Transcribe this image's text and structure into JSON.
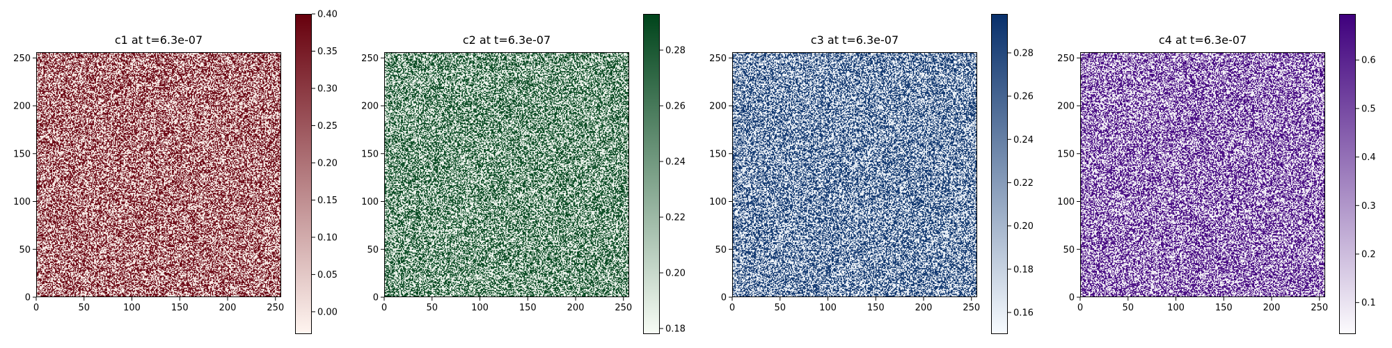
{
  "chart_data": [
    {
      "type": "heatmap",
      "title": "c1 at t=6.3e-07",
      "xlim": [
        0,
        256
      ],
      "ylim": [
        0,
        256
      ],
      "x_ticks": [
        "0",
        "50",
        "100",
        "150",
        "200",
        "250"
      ],
      "y_ticks": [
        "0",
        "50",
        "100",
        "150",
        "200",
        "250"
      ],
      "grid_size": [
        256,
        256
      ],
      "colormap": "Reds",
      "colormap_low": "#fff5f0",
      "colormap_high": "#67000d",
      "colorbar_range": [
        -0.03,
        0.4
      ],
      "colorbar_ticks": [
        "0.00",
        "0.05",
        "0.10",
        "0.15",
        "0.20",
        "0.25",
        "0.30",
        "0.35",
        "0.40"
      ]
    },
    {
      "type": "heatmap",
      "title": "c2 at t=6.3e-07",
      "xlim": [
        0,
        256
      ],
      "ylim": [
        0,
        256
      ],
      "x_ticks": [
        "0",
        "50",
        "100",
        "150",
        "200",
        "250"
      ],
      "y_ticks": [
        "0",
        "50",
        "100",
        "150",
        "200",
        "250"
      ],
      "grid_size": [
        256,
        256
      ],
      "colormap": "Greens",
      "colormap_low": "#f7fcf5",
      "colormap_high": "#00441b",
      "colorbar_range": [
        0.178,
        0.293
      ],
      "colorbar_ticks": [
        "0.18",
        "0.20",
        "0.22",
        "0.24",
        "0.26",
        "0.28"
      ]
    },
    {
      "type": "heatmap",
      "title": "c3 at t=6.3e-07",
      "xlim": [
        0,
        256
      ],
      "ylim": [
        0,
        256
      ],
      "x_ticks": [
        "0",
        "50",
        "100",
        "150",
        "200",
        "250"
      ],
      "y_ticks": [
        "0",
        "50",
        "100",
        "150",
        "200",
        "250"
      ],
      "grid_size": [
        256,
        256
      ],
      "colormap": "Blues",
      "colormap_low": "#f7fbff",
      "colormap_high": "#08306b",
      "colorbar_range": [
        0.15,
        0.298
      ],
      "colorbar_ticks": [
        "0.16",
        "0.18",
        "0.20",
        "0.22",
        "0.24",
        "0.26",
        "0.28"
      ]
    },
    {
      "type": "heatmap",
      "title": "c4 at t=6.3e-07",
      "xlim": [
        0,
        256
      ],
      "ylim": [
        0,
        256
      ],
      "x_ticks": [
        "0",
        "50",
        "100",
        "150",
        "200",
        "250"
      ],
      "y_ticks": [
        "0",
        "50",
        "100",
        "150",
        "200",
        "250"
      ],
      "grid_size": [
        256,
        256
      ],
      "colormap": "Purples",
      "colormap_low": "#fcfbfd",
      "colormap_high": "#3f007d",
      "colorbar_range": [
        0.035,
        0.695
      ],
      "colorbar_ticks": [
        "0.1",
        "0.2",
        "0.3",
        "0.4",
        "0.5",
        "0.6"
      ]
    }
  ]
}
